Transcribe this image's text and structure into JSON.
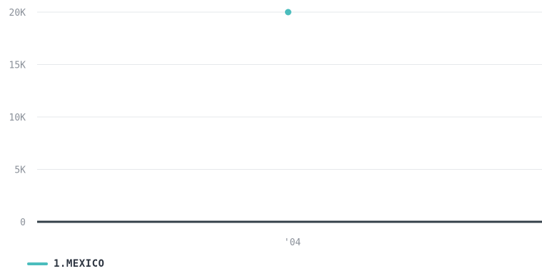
{
  "chart_data": {
    "type": "line",
    "x": [
      "'04"
    ],
    "y_ticks": [
      "0",
      "5K",
      "10K",
      "15K",
      "20K"
    ],
    "ylim": [
      0,
      20000
    ],
    "grid": true,
    "legend_placement": "bottom-left",
    "series": [
      {
        "name": "1.MEXICO",
        "color": "#4bbdbd",
        "values": [
          20000
        ]
      }
    ]
  },
  "colors": {
    "grid": "#e6e8eb",
    "baseline": "#35404a",
    "tick_text": "#8a9099"
  }
}
